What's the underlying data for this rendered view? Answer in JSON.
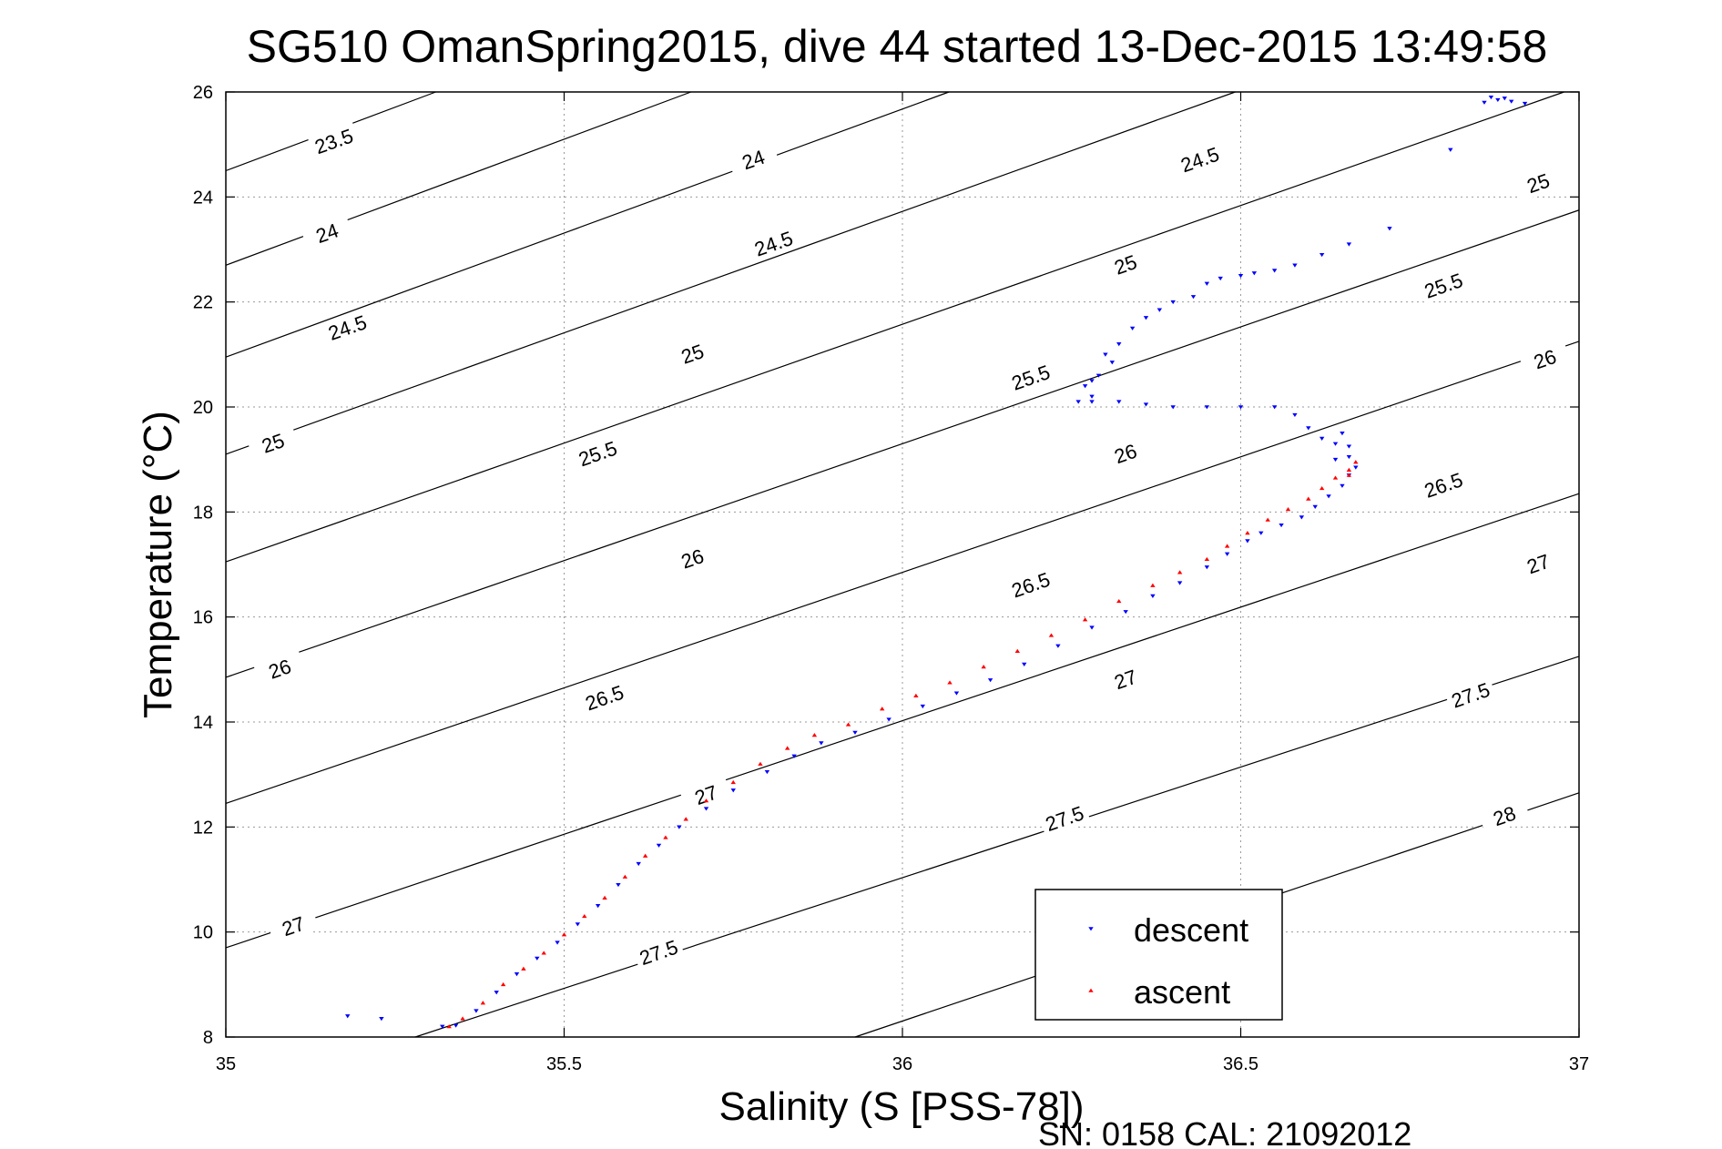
{
  "chart_data": {
    "type": "scatter",
    "title": "SG510 OmanSpring2015, dive 44 started 13-Dec-2015 13:49:58",
    "xlabel": "Salinity (S [PSS-78])",
    "ylabel": "Temperature (°C)",
    "xlim": [
      35,
      37
    ],
    "ylim": [
      8,
      26
    ],
    "xticks": [
      35,
      35.5,
      36,
      36.5,
      37
    ],
    "xtick_labels": [
      "35",
      "35.5",
      "36",
      "36.5",
      "37"
    ],
    "yticks": [
      8,
      10,
      12,
      14,
      16,
      18,
      20,
      22,
      24,
      26
    ],
    "ytick_labels": [
      "8",
      "10",
      "12",
      "14",
      "16",
      "18",
      "20",
      "22",
      "24",
      "26"
    ],
    "grid": true,
    "legend": {
      "placement": "bottom-right",
      "entries": [
        "descent",
        "ascent"
      ]
    },
    "footer": "SN: 0158  CAL: 21092012",
    "colors": {
      "descent": "#0000ff",
      "ascent": "#ff0000",
      "contour": "#000000"
    },
    "density_contours": [
      {
        "label": "23.5",
        "slope": 4.8,
        "points": [
          [
            35.0,
            24.5
          ],
          [
            35.6,
            27.4
          ]
        ]
      },
      {
        "label": "24",
        "slope": 4.78,
        "points": [
          [
            35.0,
            22.7
          ],
          [
            36.0,
            27.5
          ]
        ]
      },
      {
        "label": "24.5",
        "slope": 4.7,
        "points": [
          [
            35.0,
            20.95
          ],
          [
            37.0,
            30.4
          ]
        ]
      },
      {
        "label": "25",
        "slope": 4.62,
        "points": [
          [
            35.0,
            19.1
          ],
          [
            37.0,
            28.35
          ]
        ]
      },
      {
        "label": "25.5",
        "slope": 4.52,
        "points": [
          [
            35.0,
            17.05
          ],
          [
            37.0,
            26.1
          ]
        ]
      },
      {
        "label": "26",
        "slope": 4.45,
        "points": [
          [
            35.0,
            14.85
          ],
          [
            37.0,
            23.75
          ]
        ]
      },
      {
        "label": "26.5",
        "slope": 4.39,
        "points": [
          [
            35.0,
            12.45
          ],
          [
            37.0,
            21.25
          ]
        ]
      },
      {
        "label": "27",
        "slope": 4.32,
        "points": [
          [
            35.0,
            9.7
          ],
          [
            37.0,
            18.35
          ]
        ]
      },
      {
        "label": "27.5",
        "slope": 4.22,
        "points": [
          [
            35.28,
            8.0
          ],
          [
            37.0,
            15.25
          ]
        ]
      },
      {
        "label": "28",
        "slope": 4.1,
        "points": [
          [
            35.93,
            8.0
          ],
          [
            37.0,
            12.65
          ]
        ]
      }
    ],
    "contour_labels": [
      {
        "text": "23.5",
        "x": 35.16,
        "y": 25.05
      },
      {
        "text": "24",
        "x": 35.78,
        "y": 24.7
      },
      {
        "text": "24.5",
        "x": 36.44,
        "y": 24.7
      },
      {
        "text": "25",
        "x": 36.94,
        "y": 24.25
      },
      {
        "text": "24",
        "x": 35.15,
        "y": 23.3
      },
      {
        "text": "24.5",
        "x": 35.81,
        "y": 23.1
      },
      {
        "text": "25",
        "x": 36.33,
        "y": 22.7
      },
      {
        "text": "25.5",
        "x": 36.8,
        "y": 22.3
      },
      {
        "text": "24.5",
        "x": 35.18,
        "y": 21.5
      },
      {
        "text": "25",
        "x": 35.69,
        "y": 21.0
      },
      {
        "text": "25.5",
        "x": 36.19,
        "y": 20.55
      },
      {
        "text": "26",
        "x": 36.95,
        "y": 20.9
      },
      {
        "text": "25",
        "x": 35.07,
        "y": 19.3
      },
      {
        "text": "25.5",
        "x": 35.55,
        "y": 19.1
      },
      {
        "text": "26",
        "x": 36.33,
        "y": 19.1
      },
      {
        "text": "26.5",
        "x": 36.8,
        "y": 18.5
      },
      {
        "text": "26",
        "x": 35.69,
        "y": 17.1
      },
      {
        "text": "26.5",
        "x": 36.19,
        "y": 16.6
      },
      {
        "text": "27",
        "x": 36.94,
        "y": 17.0
      },
      {
        "text": "26",
        "x": 35.08,
        "y": 15.0
      },
      {
        "text": "26.5",
        "x": 35.56,
        "y": 14.45
      },
      {
        "text": "27",
        "x": 36.33,
        "y": 14.8
      },
      {
        "text": "27.5",
        "x": 36.84,
        "y": 14.5
      },
      {
        "text": "27",
        "x": 35.71,
        "y": 12.6
      },
      {
        "text": "27.5",
        "x": 36.24,
        "y": 12.15
      },
      {
        "text": "28",
        "x": 36.89,
        "y": 12.2
      },
      {
        "text": "27",
        "x": 35.1,
        "y": 10.1
      },
      {
        "text": "27.5",
        "x": 35.64,
        "y": 9.6
      }
    ],
    "series": [
      {
        "name": "descent",
        "marker": "triangle-down",
        "x": [
          35.18,
          35.23,
          35.32,
          35.34,
          35.37,
          35.4,
          35.43,
          35.46,
          35.49,
          35.52,
          35.55,
          35.58,
          35.61,
          35.64,
          35.67,
          35.71,
          35.75,
          35.8,
          35.84,
          35.88,
          35.93,
          35.98,
          36.03,
          36.08,
          36.13,
          36.18,
          36.23,
          36.28,
          36.33,
          36.37,
          36.41,
          36.45,
          36.48,
          36.51,
          36.53,
          36.56,
          36.59,
          36.61,
          36.63,
          36.65,
          36.66,
          36.67,
          36.66,
          36.64,
          36.65,
          36.66,
          36.64,
          36.62,
          36.6,
          36.58,
          36.55,
          36.5,
          36.45,
          36.4,
          36.36,
          36.32,
          36.28,
          36.27,
          36.29,
          36.31,
          36.28,
          36.26,
          36.28,
          36.3,
          36.32,
          36.34,
          36.36,
          36.38,
          36.4,
          36.43,
          36.45,
          36.47,
          36.5,
          36.52,
          36.55,
          36.58,
          36.62,
          36.66,
          36.72,
          36.81,
          36.86,
          36.88,
          36.9,
          36.92,
          36.89,
          36.87
        ],
        "y": [
          8.4,
          8.35,
          8.2,
          8.22,
          8.5,
          8.85,
          9.2,
          9.5,
          9.8,
          10.15,
          10.5,
          10.9,
          11.3,
          11.65,
          12.0,
          12.35,
          12.7,
          13.05,
          13.35,
          13.6,
          13.8,
          14.05,
          14.3,
          14.55,
          14.8,
          15.1,
          15.45,
          15.8,
          16.1,
          16.4,
          16.65,
          16.95,
          17.2,
          17.45,
          17.6,
          17.75,
          17.9,
          18.1,
          18.3,
          18.5,
          18.7,
          18.85,
          19.05,
          19.3,
          19.5,
          19.25,
          19.0,
          19.4,
          19.6,
          19.85,
          20.0,
          20.0,
          20.0,
          20.0,
          20.05,
          20.1,
          20.1,
          20.4,
          20.6,
          20.85,
          20.2,
          20.1,
          20.5,
          21.0,
          21.2,
          21.5,
          21.7,
          21.85,
          22.0,
          22.1,
          22.35,
          22.45,
          22.5,
          22.55,
          22.6,
          22.7,
          22.9,
          23.1,
          23.4,
          24.9,
          25.8,
          25.85,
          25.82,
          25.78,
          25.88,
          25.9
        ]
      },
      {
        "name": "ascent",
        "marker": "triangle-up",
        "x": [
          35.33,
          35.35,
          35.38,
          35.41,
          35.44,
          35.47,
          35.5,
          35.53,
          35.56,
          35.59,
          35.62,
          35.65,
          35.68,
          35.71,
          35.75,
          35.79,
          35.83,
          35.87,
          35.92,
          35.97,
          36.02,
          36.07,
          36.12,
          36.17,
          36.22,
          36.27,
          36.32,
          36.37,
          36.41,
          36.45,
          36.48,
          36.51,
          36.54,
          36.57,
          36.6,
          36.62,
          36.64,
          36.66,
          36.67,
          36.66
        ],
        "y": [
          8.2,
          8.35,
          8.65,
          9.0,
          9.3,
          9.6,
          9.95,
          10.3,
          10.65,
          11.05,
          11.45,
          11.8,
          12.15,
          12.5,
          12.85,
          13.2,
          13.5,
          13.75,
          13.95,
          14.25,
          14.5,
          14.75,
          15.05,
          15.35,
          15.65,
          15.95,
          16.3,
          16.6,
          16.85,
          17.1,
          17.35,
          17.6,
          17.85,
          18.05,
          18.25,
          18.45,
          18.65,
          18.8,
          18.95,
          18.7
        ]
      }
    ]
  }
}
